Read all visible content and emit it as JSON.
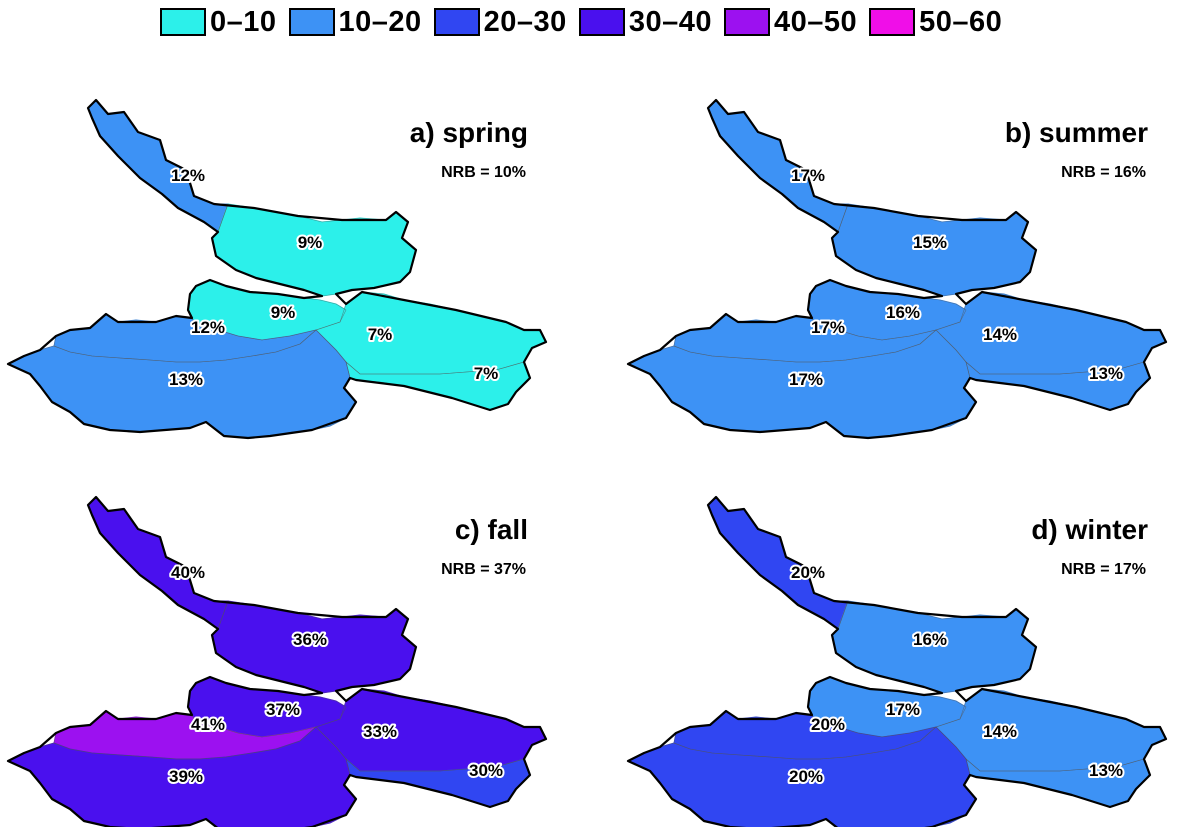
{
  "legend": [
    {
      "label": "0–10",
      "color": "#2cf0ea"
    },
    {
      "label": "10–20",
      "color": "#3d92f5"
    },
    {
      "label": "20–30",
      "color": "#3046f2"
    },
    {
      "label": "30–40",
      "color": "#4a10ee"
    },
    {
      "label": "40–50",
      "color": "#9c11f0"
    },
    {
      "label": "50–60",
      "color": "#f00ee8"
    }
  ],
  "panels": [
    {
      "title": "a) spring",
      "nrb": "NRB = 10%",
      "regions": {
        "northwest": "10–20",
        "northmid": "0–10",
        "centerwest": "10–20",
        "centermid": "0–10",
        "east": "0–10",
        "southeast": "0–10",
        "southwest": "10–20"
      },
      "labels": {
        "northwest": "12%",
        "northmid": "9%",
        "centermid": "9%",
        "centerwest": "12%",
        "east": "7%",
        "southwest": "13%",
        "southeast": "7%"
      }
    },
    {
      "title": "b) summer",
      "nrb": "NRB = 16%",
      "regions": {
        "northwest": "10–20",
        "northmid": "10–20",
        "centerwest": "10–20",
        "centermid": "10–20",
        "east": "10–20",
        "southeast": "10–20",
        "southwest": "10–20"
      },
      "labels": {
        "northwest": "17%",
        "northmid": "15%",
        "centermid": "16%",
        "centerwest": "17%",
        "east": "14%",
        "southwest": "17%",
        "southeast": "13%"
      }
    },
    {
      "title": "c) fall",
      "nrb": "NRB = 37%",
      "regions": {
        "northwest": "30–40",
        "northmid": "30–40",
        "centerwest": "40–50",
        "centermid": "30–40",
        "east": "30–40",
        "southeast": "20–30",
        "southwest": "30–40"
      },
      "labels": {
        "northwest": "40%",
        "northmid": "36%",
        "centermid": "37%",
        "centerwest": "41%",
        "east": "33%",
        "southwest": "39%",
        "southeast": "30%"
      }
    },
    {
      "title": "d) winter",
      "nrb": "NRB = 17%",
      "regions": {
        "northwest": "20–30",
        "northmid": "10–20",
        "centerwest": "20–30",
        "centermid": "10–20",
        "east": "10–20",
        "southeast": "10–20",
        "southwest": "20–30"
      },
      "labels": {
        "northwest": "20%",
        "northmid": "16%",
        "centermid": "17%",
        "centerwest": "20%",
        "east": "14%",
        "southwest": "20%",
        "southeast": "13%"
      }
    }
  ]
}
